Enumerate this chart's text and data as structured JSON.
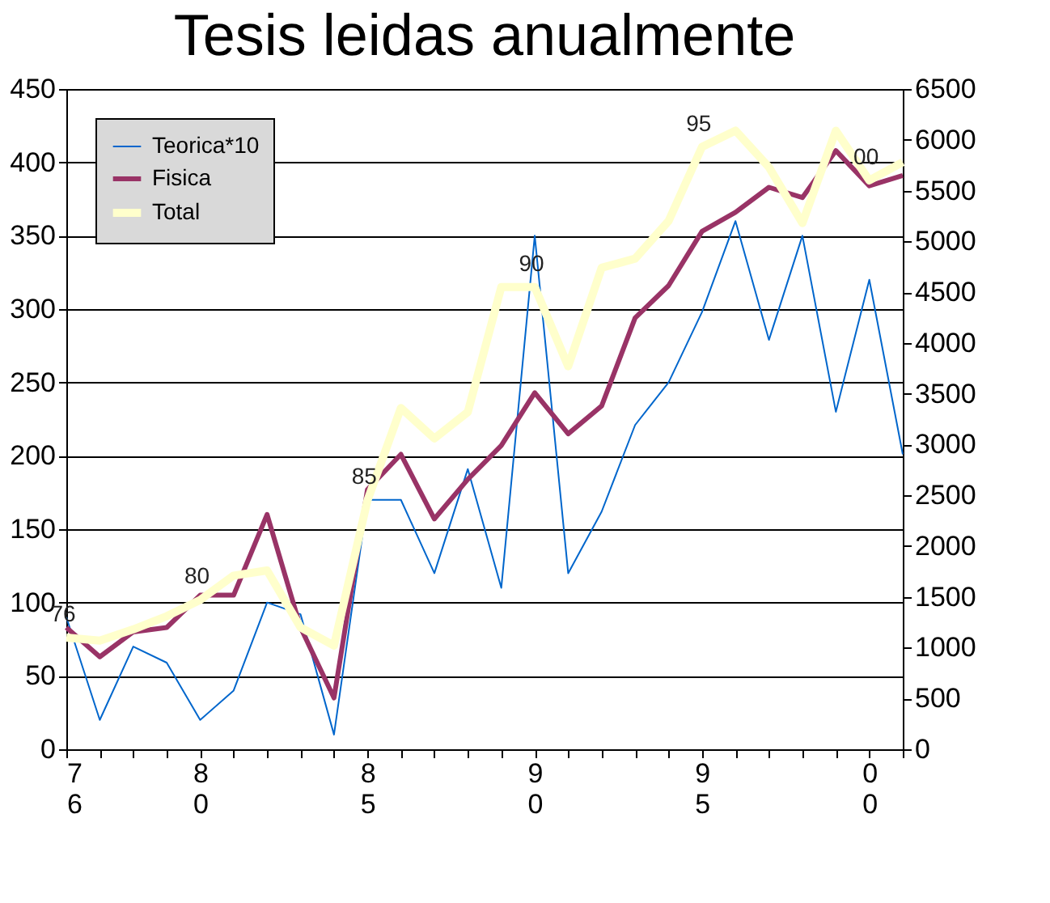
{
  "chart_data": {
    "type": "line",
    "title": "Tesis leidas anualmente",
    "categories": [
      "76",
      null,
      null,
      null,
      "80",
      null,
      null,
      null,
      null,
      "85",
      null,
      null,
      null,
      null,
      "90",
      null,
      null,
      null,
      null,
      "95",
      null,
      null,
      null,
      null,
      "00",
      null
    ],
    "series": [
      {
        "name": "Teorica*10",
        "color": "#0066cc",
        "values": [
          90,
          20,
          70,
          59,
          20,
          40,
          100,
          92,
          10,
          170,
          170,
          120,
          191,
          110,
          350,
          120,
          162,
          221,
          250,
          298,
          360,
          279,
          350,
          230,
          320,
          201
        ]
      },
      {
        "name": "Fisica",
        "color": "#993366",
        "values": [
          83,
          63,
          80,
          83,
          105,
          105,
          160,
          83,
          35,
          177,
          201,
          157,
          184,
          207,
          243,
          215,
          234,
          294,
          316,
          353,
          366,
          383,
          376,
          408,
          384,
          391
        ]
      },
      {
        "name": "Total",
        "color": "#ffffcc",
        "axis": "y2",
        "values": [
          1100,
          1070,
          1180,
          1310,
          1470,
          1710,
          1760,
          1200,
          1020,
          2450,
          3360,
          3060,
          3320,
          4550,
          4550,
          3770,
          4740,
          4830,
          5200,
          5930,
          6090,
          5730,
          5180,
          6090,
          5600,
          5780
        ]
      }
    ],
    "annotations": [
      "76",
      "80",
      "85",
      "90",
      "95",
      "00"
    ],
    "ylim": [
      0,
      450
    ],
    "yticks": [
      0,
      50,
      100,
      150,
      200,
      250,
      300,
      350,
      400,
      450
    ],
    "y2lim": [
      0,
      6500
    ],
    "y2ticks": [
      0,
      500,
      1000,
      1500,
      2000,
      2500,
      3000,
      3500,
      4000,
      4500,
      5000,
      5500,
      6000,
      6500
    ],
    "grid": "y",
    "legend": "top left",
    "marker": "none",
    "line_style": "solid"
  }
}
